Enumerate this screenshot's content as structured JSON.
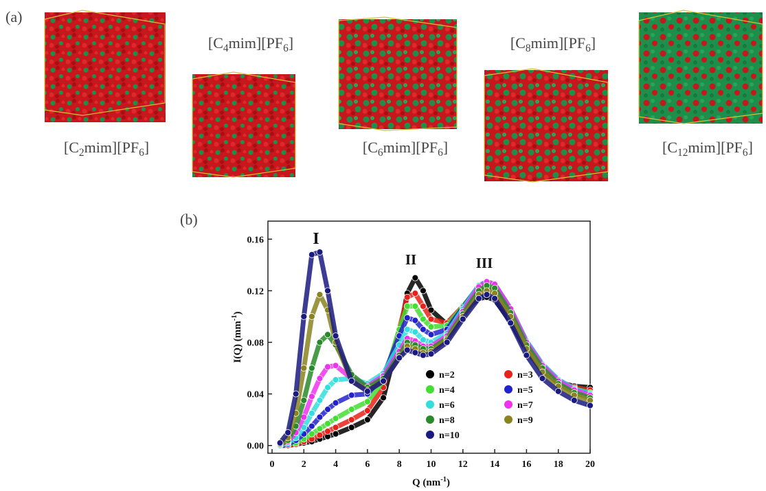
{
  "panel_a": {
    "label": "(a)",
    "structures": [
      {
        "parts": [
          "[C",
          "2",
          "mim][PF",
          "6",
          "]"
        ]
      },
      {
        "parts": [
          "[C",
          "4",
          "mim][PF",
          "6",
          "]"
        ]
      },
      {
        "parts": [
          "[C",
          "6",
          "mim][PF",
          "6",
          "]"
        ]
      },
      {
        "parts": [
          "[C",
          "8",
          "mim][PF",
          "6",
          "]"
        ]
      },
      {
        "parts": [
          "[C",
          "12",
          "mim][PF",
          "6",
          "]"
        ]
      }
    ]
  },
  "chart_data": {
    "type": "line",
    "panel_label": "(b)",
    "x_label": [
      "Q (nm",
      "-1",
      ")"
    ],
    "y_label": [
      "I(Q) (mm",
      "-1",
      ")"
    ],
    "annotations": [
      "I",
      "II",
      "III"
    ],
    "x": [
      0.5,
      1,
      1.5,
      2,
      2.5,
      3,
      3.5,
      4,
      5,
      6,
      7,
      8,
      8.5,
      9,
      9.5,
      10,
      11,
      12,
      13,
      13.5,
      14,
      15,
      16,
      17,
      18,
      19,
      20
    ],
    "series": [
      {
        "name": "n=2",
        "color": "#000000",
        "values": [
          0,
          0,
          0.001,
          0.002,
          0.003,
          0.005,
          0.007,
          0.009,
          0.014,
          0.02,
          0.037,
          0.085,
          0.118,
          0.13,
          0.12,
          0.105,
          0.094,
          0.104,
          0.114,
          0.115,
          0.113,
          0.096,
          0.074,
          0.058,
          0.049,
          0.046,
          0.045
        ]
      },
      {
        "name": "n=3",
        "color": "#e8221a",
        "values": [
          0,
          0,
          0.001,
          0.003,
          0.005,
          0.008,
          0.011,
          0.014,
          0.02,
          0.027,
          0.045,
          0.09,
          0.115,
          0.118,
          0.108,
          0.098,
          0.095,
          0.108,
          0.121,
          0.122,
          0.12,
          0.101,
          0.077,
          0.06,
          0.05,
          0.045,
          0.043
        ]
      },
      {
        "name": "n=4",
        "color": "#44dd33",
        "values": [
          0,
          0.001,
          0.002,
          0.005,
          0.009,
          0.013,
          0.017,
          0.021,
          0.028,
          0.034,
          0.05,
          0.09,
          0.108,
          0.108,
          0.098,
          0.092,
          0.093,
          0.108,
          0.123,
          0.125,
          0.123,
          0.104,
          0.079,
          0.061,
          0.05,
          0.044,
          0.041
        ]
      },
      {
        "name": "n=5",
        "color": "#2222cc",
        "values": [
          0,
          0.001,
          0.004,
          0.009,
          0.015,
          0.022,
          0.028,
          0.033,
          0.039,
          0.04,
          0.054,
          0.085,
          0.099,
          0.097,
          0.09,
          0.086,
          0.09,
          0.107,
          0.124,
          0.127,
          0.125,
          0.106,
          0.081,
          0.063,
          0.051,
          0.044,
          0.04
        ]
      },
      {
        "name": "n=6",
        "color": "#33dddd",
        "values": [
          0,
          0.002,
          0.006,
          0.014,
          0.025,
          0.035,
          0.045,
          0.051,
          0.052,
          0.048,
          0.056,
          0.078,
          0.09,
          0.088,
          0.082,
          0.08,
          0.087,
          0.106,
          0.124,
          0.127,
          0.125,
          0.106,
          0.081,
          0.063,
          0.051,
          0.044,
          0.04
        ]
      },
      {
        "name": "n=7",
        "color": "#ee33ee",
        "values": [
          0.001,
          0.003,
          0.01,
          0.022,
          0.038,
          0.052,
          0.061,
          0.062,
          0.052,
          0.046,
          0.054,
          0.073,
          0.083,
          0.081,
          0.077,
          0.077,
          0.085,
          0.104,
          0.123,
          0.127,
          0.125,
          0.106,
          0.08,
          0.062,
          0.05,
          0.043,
          0.039
        ]
      },
      {
        "name": "n=8",
        "color": "#2a8a2a",
        "values": [
          0.001,
          0.004,
          0.015,
          0.035,
          0.06,
          0.08,
          0.086,
          0.078,
          0.055,
          0.045,
          0.052,
          0.07,
          0.08,
          0.078,
          0.075,
          0.075,
          0.083,
          0.102,
          0.12,
          0.124,
          0.122,
          0.103,
          0.078,
          0.06,
          0.048,
          0.041,
          0.037
        ]
      },
      {
        "name": "n=9",
        "color": "#8a8420",
        "values": [
          0.001,
          0.006,
          0.025,
          0.06,
          0.1,
          0.117,
          0.105,
          0.08,
          0.05,
          0.043,
          0.05,
          0.068,
          0.077,
          0.075,
          0.072,
          0.073,
          0.082,
          0.1,
          0.117,
          0.12,
          0.118,
          0.1,
          0.075,
          0.057,
          0.046,
          0.039,
          0.035
        ]
      },
      {
        "name": "n=10",
        "color": "#1a1a80",
        "values": [
          0.002,
          0.01,
          0.04,
          0.1,
          0.148,
          0.15,
          0.12,
          0.085,
          0.05,
          0.042,
          0.05,
          0.068,
          0.074,
          0.072,
          0.07,
          0.071,
          0.08,
          0.098,
          0.114,
          0.117,
          0.114,
          0.095,
          0.07,
          0.052,
          0.042,
          0.035,
          0.031
        ]
      }
    ],
    "xlim": [
      0,
      20
    ],
    "ylim": [
      -0.006,
      0.174
    ],
    "xticks": [
      0,
      2,
      4,
      6,
      8,
      10,
      12,
      14,
      16,
      18,
      20
    ],
    "yticks": [
      {
        "value": 0,
        "label": "0.00"
      },
      {
        "value": 0.04,
        "label": "0.04"
      },
      {
        "value": 0.08,
        "label": "0.08"
      },
      {
        "value": 0.12,
        "label": "0.12"
      },
      {
        "value": 0.16,
        "label": "0.16"
      }
    ]
  }
}
